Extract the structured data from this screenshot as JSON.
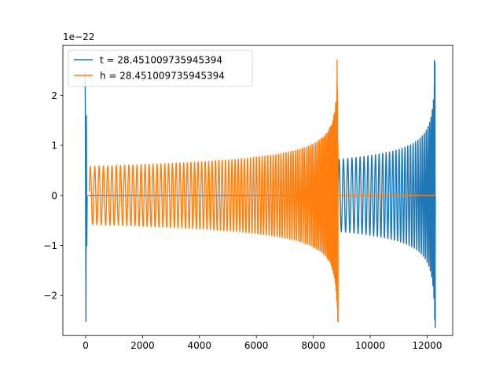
{
  "chart_data": {
    "type": "line",
    "title": "",
    "xlabel": "",
    "ylabel": "",
    "xlim": [
      -800,
      12900
    ],
    "ylim": [
      -2.8,
      3.0
    ],
    "y_scale_label": "1e−22",
    "x_ticks": [
      0,
      2000,
      4000,
      6000,
      8000,
      10000,
      12000
    ],
    "x_tick_labels": [
      "0",
      "2000",
      "4000",
      "6000",
      "8000",
      "10000",
      "12000"
    ],
    "y_ticks": [
      -2,
      -1,
      0,
      1,
      2
    ],
    "y_tick_labels": [
      "−2",
      "−1",
      "0",
      "1",
      "2"
    ],
    "grid": false,
    "legend_position": "top-left",
    "series": [
      {
        "name": "t = 28.451009735945394",
        "color": "#1f77b4",
        "segments": [
          {
            "kind": "spike",
            "x": 0,
            "ymin": -2.52,
            "ymax": 2.45
          },
          {
            "kind": "oscillation",
            "x_start": 0,
            "x_end": 8870,
            "envelope": 0
          },
          {
            "kind": "chirp",
            "x_start": 8870,
            "x_end": 12290,
            "envelope_start": 0.72,
            "envelope_peak": 2.7,
            "envelope_end": -2.45
          }
        ]
      },
      {
        "name": "h = 28.451009735945394",
        "color": "#ff7f0e",
        "segments": [
          {
            "kind": "flat",
            "x_start": 0,
            "x_end": 130,
            "y": 0
          },
          {
            "kind": "chirp",
            "x_start": 130,
            "x_end": 8870,
            "envelope_start": 0.58,
            "envelope_peak": 2.7,
            "envelope_end": -2.52
          },
          {
            "kind": "flat",
            "x_start": 8870,
            "x_end": 12290,
            "y": 0
          }
        ]
      }
    ]
  }
}
